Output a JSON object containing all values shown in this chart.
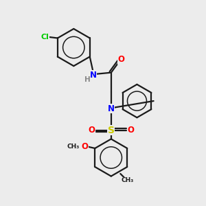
{
  "background_color": "#ececec",
  "bond_color": "#1a1a1a",
  "atom_colors": {
    "N": "#0000ff",
    "O": "#ff0000",
    "S": "#cccc00",
    "Cl": "#00cc00",
    "H": "#888888",
    "C": "#1a1a1a"
  },
  "figsize": [
    3.0,
    3.0
  ],
  "dpi": 100
}
